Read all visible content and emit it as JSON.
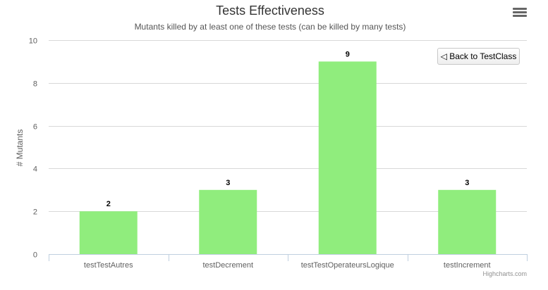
{
  "chart_data": {
    "type": "bar",
    "title": "Tests Effectiveness",
    "subtitle": "Mutants killed by at least one of these tests (can be killed by many tests)",
    "categories": [
      "testTestAutres",
      "testDecrement",
      "testTestOperateursLogique",
      "testIncrement"
    ],
    "values": [
      2,
      3,
      9,
      3
    ],
    "ylabel": "# Mutants",
    "xlabel": "",
    "ylim": [
      0,
      10
    ],
    "yticks": [
      0,
      2,
      4,
      6,
      8,
      10
    ],
    "grid": true,
    "legend": false,
    "bar_color": "#90ed7d",
    "data_labels": true
  },
  "ui": {
    "back_button_label": "◁ Back to TestClass",
    "menu_icon": "hamburger-menu-icon",
    "credits": "Highcharts.com"
  }
}
